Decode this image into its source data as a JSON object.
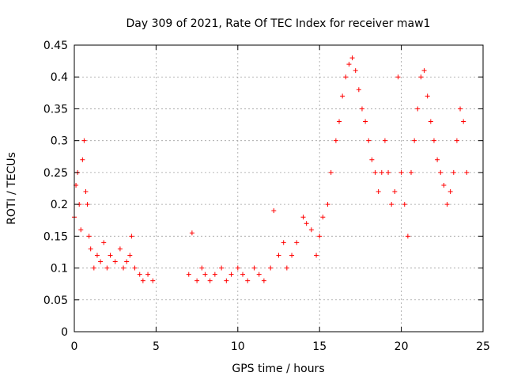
{
  "chart_data": {
    "type": "scatter",
    "title": "Day 309 of 2021, Rate Of TEC Index for receiver maw1",
    "xlabel": "GPS time / hours",
    "ylabel": "ROTI / TECUs",
    "xlim": [
      0,
      25
    ],
    "ylim": [
      0,
      0.45
    ],
    "xticks": [
      "0",
      "5",
      "10",
      "15",
      "20",
      "25"
    ],
    "yticks": [
      "0",
      "0.05",
      "0.1",
      "0.15",
      "0.2",
      "0.25",
      "0.3",
      "0.35",
      "0.4",
      "0.45"
    ],
    "grid": true,
    "marker": "+",
    "color": "#ff0000",
    "series": [
      {
        "x": [
          0.0,
          0.1,
          0.2,
          0.3,
          0.4,
          0.5,
          0.6,
          0.7,
          0.8,
          0.9,
          1.0,
          1.2,
          1.4,
          1.6,
          1.8,
          2.0,
          2.2,
          2.5,
          2.8,
          3.0,
          3.2,
          3.4,
          3.5,
          3.7,
          4.0,
          4.2,
          4.5,
          4.8,
          7.0,
          7.2,
          7.5,
          7.8,
          8.0,
          8.3,
          8.6,
          9.0,
          9.3,
          9.6,
          10.0,
          10.3,
          10.6,
          11.0,
          11.3,
          11.6,
          12.0,
          12.2,
          12.5,
          12.8,
          13.0,
          13.3,
          13.6,
          14.0,
          14.2,
          14.5,
          14.8,
          15.0,
          15.2,
          15.5,
          15.7,
          16.0,
          16.2,
          16.4,
          16.6,
          16.8,
          17.0,
          17.2,
          17.4,
          17.6,
          17.8,
          18.0,
          18.2,
          18.4,
          18.6,
          18.8,
          19.0,
          19.2,
          19.4,
          19.6,
          19.8,
          20.0,
          20.2,
          20.4,
          20.6,
          20.8,
          21.0,
          21.2,
          21.4,
          21.6,
          21.8,
          22.0,
          22.2,
          22.4,
          22.6,
          22.8,
          23.0,
          23.2,
          23.4,
          23.6,
          23.8,
          24.0
        ],
        "y": [
          0.18,
          0.23,
          0.25,
          0.2,
          0.16,
          0.27,
          0.3,
          0.22,
          0.2,
          0.15,
          0.13,
          0.1,
          0.12,
          0.11,
          0.14,
          0.1,
          0.12,
          0.11,
          0.13,
          0.1,
          0.11,
          0.12,
          0.15,
          0.1,
          0.09,
          0.08,
          0.09,
          0.08,
          0.09,
          0.155,
          0.08,
          0.1,
          0.09,
          0.08,
          0.09,
          0.1,
          0.08,
          0.09,
          0.1,
          0.09,
          0.08,
          0.1,
          0.09,
          0.08,
          0.1,
          0.19,
          0.12,
          0.14,
          0.1,
          0.12,
          0.14,
          0.18,
          0.17,
          0.16,
          0.12,
          0.15,
          0.18,
          0.2,
          0.25,
          0.3,
          0.33,
          0.37,
          0.4,
          0.42,
          0.43,
          0.41,
          0.38,
          0.35,
          0.33,
          0.3,
          0.27,
          0.25,
          0.22,
          0.25,
          0.3,
          0.25,
          0.2,
          0.22,
          0.4,
          0.25,
          0.2,
          0.15,
          0.25,
          0.3,
          0.35,
          0.4,
          0.41,
          0.37,
          0.33,
          0.3,
          0.27,
          0.25,
          0.23,
          0.2,
          0.22,
          0.25,
          0.3,
          0.35,
          0.33,
          0.25
        ]
      }
    ]
  }
}
